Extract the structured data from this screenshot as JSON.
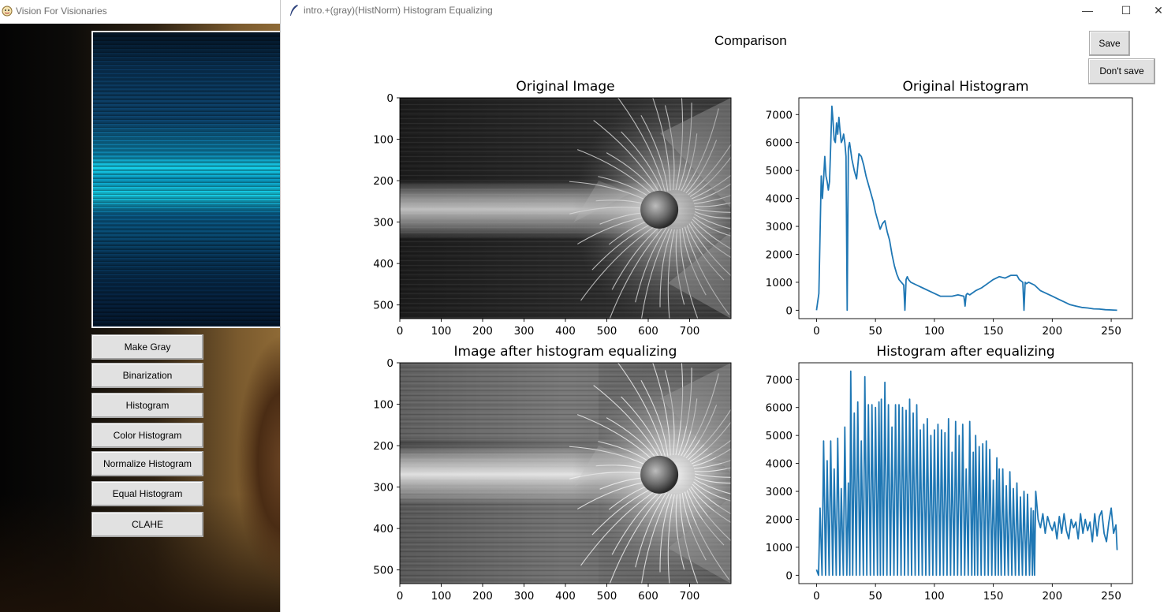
{
  "background_window": {
    "title": "Vision For Visionaries",
    "buttons": [
      "Make Gray",
      "Binarization",
      "Histogram",
      "Color Histogram",
      "Normalize Histogram",
      "Equal Histogram",
      "CLAHE"
    ]
  },
  "main_window": {
    "title": "intro.+(gray)(HistNorm) Histogram Equalizing",
    "figure_title": "Comparison",
    "save_label": "Save",
    "dont_save_label": "Don't save",
    "controls": {
      "minimize": "—",
      "maximize": "☐",
      "close": "✕"
    }
  },
  "chart_data": [
    {
      "type": "image",
      "title": "Original Image",
      "xlim": [
        0,
        800
      ],
      "ylim": [
        533,
        0
      ],
      "xticks": [
        0,
        100,
        200,
        300,
        400,
        500,
        600,
        700
      ],
      "yticks": [
        0,
        100,
        200,
        300,
        400,
        500
      ]
    },
    {
      "type": "line",
      "title": "Original Histogram",
      "xlim": [
        -15,
        268
      ],
      "ylim": [
        -300,
        7600
      ],
      "xticks": [
        0,
        50,
        100,
        150,
        200,
        250
      ],
      "yticks": [
        0,
        1000,
        2000,
        3000,
        4000,
        5000,
        6000,
        7000
      ],
      "color": "#1f77b4",
      "x": [
        0,
        2,
        4,
        5,
        6,
        7,
        8,
        9,
        10,
        11,
        12,
        13,
        14,
        15,
        16,
        17,
        18,
        19,
        20,
        21,
        22,
        23,
        24,
        25,
        26,
        27,
        28,
        29,
        30,
        32,
        34,
        36,
        38,
        40,
        42,
        44,
        46,
        48,
        50,
        52,
        54,
        56,
        58,
        60,
        62,
        64,
        66,
        68,
        70,
        72,
        74,
        75,
        76,
        77,
        78,
        80,
        85,
        90,
        95,
        100,
        105,
        110,
        115,
        120,
        125,
        126,
        127,
        128,
        130,
        135,
        140,
        145,
        150,
        155,
        160,
        165,
        170,
        172,
        175,
        176,
        177,
        178,
        180,
        185,
        190,
        195,
        200,
        205,
        210,
        215,
        220,
        225,
        230,
        235,
        240,
        245,
        250,
        255
      ],
      "y": [
        0,
        600,
        4800,
        4000,
        4700,
        5500,
        4800,
        4600,
        4300,
        4600,
        5900,
        7300,
        6800,
        6100,
        6000,
        6700,
        6300,
        6900,
        6400,
        6000,
        6100,
        6300,
        6000,
        5500,
        0,
        5800,
        6000,
        5700,
        5400,
        5000,
        4700,
        5600,
        5500,
        5200,
        4800,
        4500,
        4200,
        3900,
        3500,
        3200,
        2900,
        3100,
        3200,
        2800,
        2500,
        2000,
        1600,
        1300,
        1100,
        1000,
        900,
        0,
        1100,
        1200,
        1100,
        1000,
        900,
        800,
        700,
        600,
        500,
        500,
        500,
        550,
        500,
        150,
        550,
        600,
        550,
        700,
        800,
        950,
        1100,
        1200,
        1150,
        1250,
        1250,
        1100,
        1000,
        0,
        1000,
        950,
        1000,
        900,
        700,
        600,
        500,
        400,
        300,
        200,
        150,
        100,
        80,
        50,
        40,
        20,
        10,
        0
      ]
    },
    {
      "type": "image",
      "title": "Image after histogram equalizing",
      "xlim": [
        0,
        800
      ],
      "ylim": [
        533,
        0
      ],
      "xticks": [
        0,
        100,
        200,
        300,
        400,
        500,
        600,
        700
      ],
      "yticks": [
        0,
        100,
        200,
        300,
        400,
        500
      ]
    },
    {
      "type": "line",
      "title": "Histogram after equalizing",
      "xlim": [
        -15,
        268
      ],
      "ylim": [
        -300,
        7600
      ],
      "xticks": [
        0,
        50,
        100,
        150,
        200,
        250
      ],
      "yticks": [
        0,
        1000,
        2000,
        3000,
        4000,
        5000,
        6000,
        7000
      ],
      "color": "#1f77b4",
      "peaks": [
        [
          0,
          200
        ],
        [
          3,
          2400
        ],
        [
          6,
          4800
        ],
        [
          9,
          4100
        ],
        [
          12,
          4800
        ],
        [
          15,
          3800
        ],
        [
          18,
          4900
        ],
        [
          21,
          3100
        ],
        [
          24,
          5300
        ],
        [
          27,
          3300
        ],
        [
          29,
          7300
        ],
        [
          32,
          5800
        ],
        [
          35,
          6200
        ],
        [
          38,
          4800
        ],
        [
          41,
          7100
        ],
        [
          44,
          6100
        ],
        [
          47,
          6100
        ],
        [
          50,
          6000
        ],
        [
          53,
          6200
        ],
        [
          55,
          6300
        ],
        [
          58,
          6900
        ],
        [
          61,
          6100
        ],
        [
          64,
          5300
        ],
        [
          67,
          6100
        ],
        [
          70,
          6100
        ],
        [
          73,
          6000
        ],
        [
          76,
          5900
        ],
        [
          79,
          6300
        ],
        [
          82,
          5800
        ],
        [
          85,
          6100
        ],
        [
          88,
          5200
        ],
        [
          91,
          5400
        ],
        [
          94,
          5600
        ],
        [
          97,
          5000
        ],
        [
          100,
          5200
        ],
        [
          103,
          5400
        ],
        [
          106,
          5200
        ],
        [
          109,
          5100
        ],
        [
          112,
          5600
        ],
        [
          115,
          4400
        ],
        [
          118,
          5500
        ],
        [
          121,
          5000
        ],
        [
          124,
          5400
        ],
        [
          127,
          3800
        ],
        [
          130,
          5500
        ],
        [
          133,
          4400
        ],
        [
          135,
          5000
        ],
        [
          138,
          4600
        ],
        [
          141,
          4700
        ],
        [
          144,
          4800
        ],
        [
          147,
          4500
        ],
        [
          150,
          3400
        ],
        [
          153,
          4200
        ],
        [
          155,
          3800
        ],
        [
          158,
          3800
        ],
        [
          161,
          3200
        ],
        [
          164,
          3700
        ],
        [
          167,
          3100
        ],
        [
          170,
          3300
        ],
        [
          173,
          2800
        ],
        [
          176,
          3000
        ],
        [
          179,
          2900
        ],
        [
          182,
          2400
        ],
        [
          184,
          2300
        ]
      ],
      "tail_x": [
        186,
        188,
        190,
        192,
        194,
        196,
        198,
        200,
        202,
        204,
        206,
        208,
        210,
        212,
        214,
        216,
        218,
        220,
        222,
        224,
        226,
        228,
        230,
        232,
        234,
        236,
        238,
        240,
        242,
        244,
        246,
        248,
        250,
        252,
        254,
        255
      ],
      "tail_y": [
        3000,
        2000,
        1700,
        2200,
        1500,
        2100,
        1800,
        1600,
        1900,
        1300,
        2100,
        1500,
        2200,
        1600,
        1300,
        2000,
        1700,
        1900,
        1300,
        2200,
        1500,
        2000,
        1600,
        1900,
        1200,
        2200,
        1400,
        2100,
        2300,
        1500,
        1200,
        1900,
        2400,
        1500,
        1800,
        900
      ]
    }
  ]
}
